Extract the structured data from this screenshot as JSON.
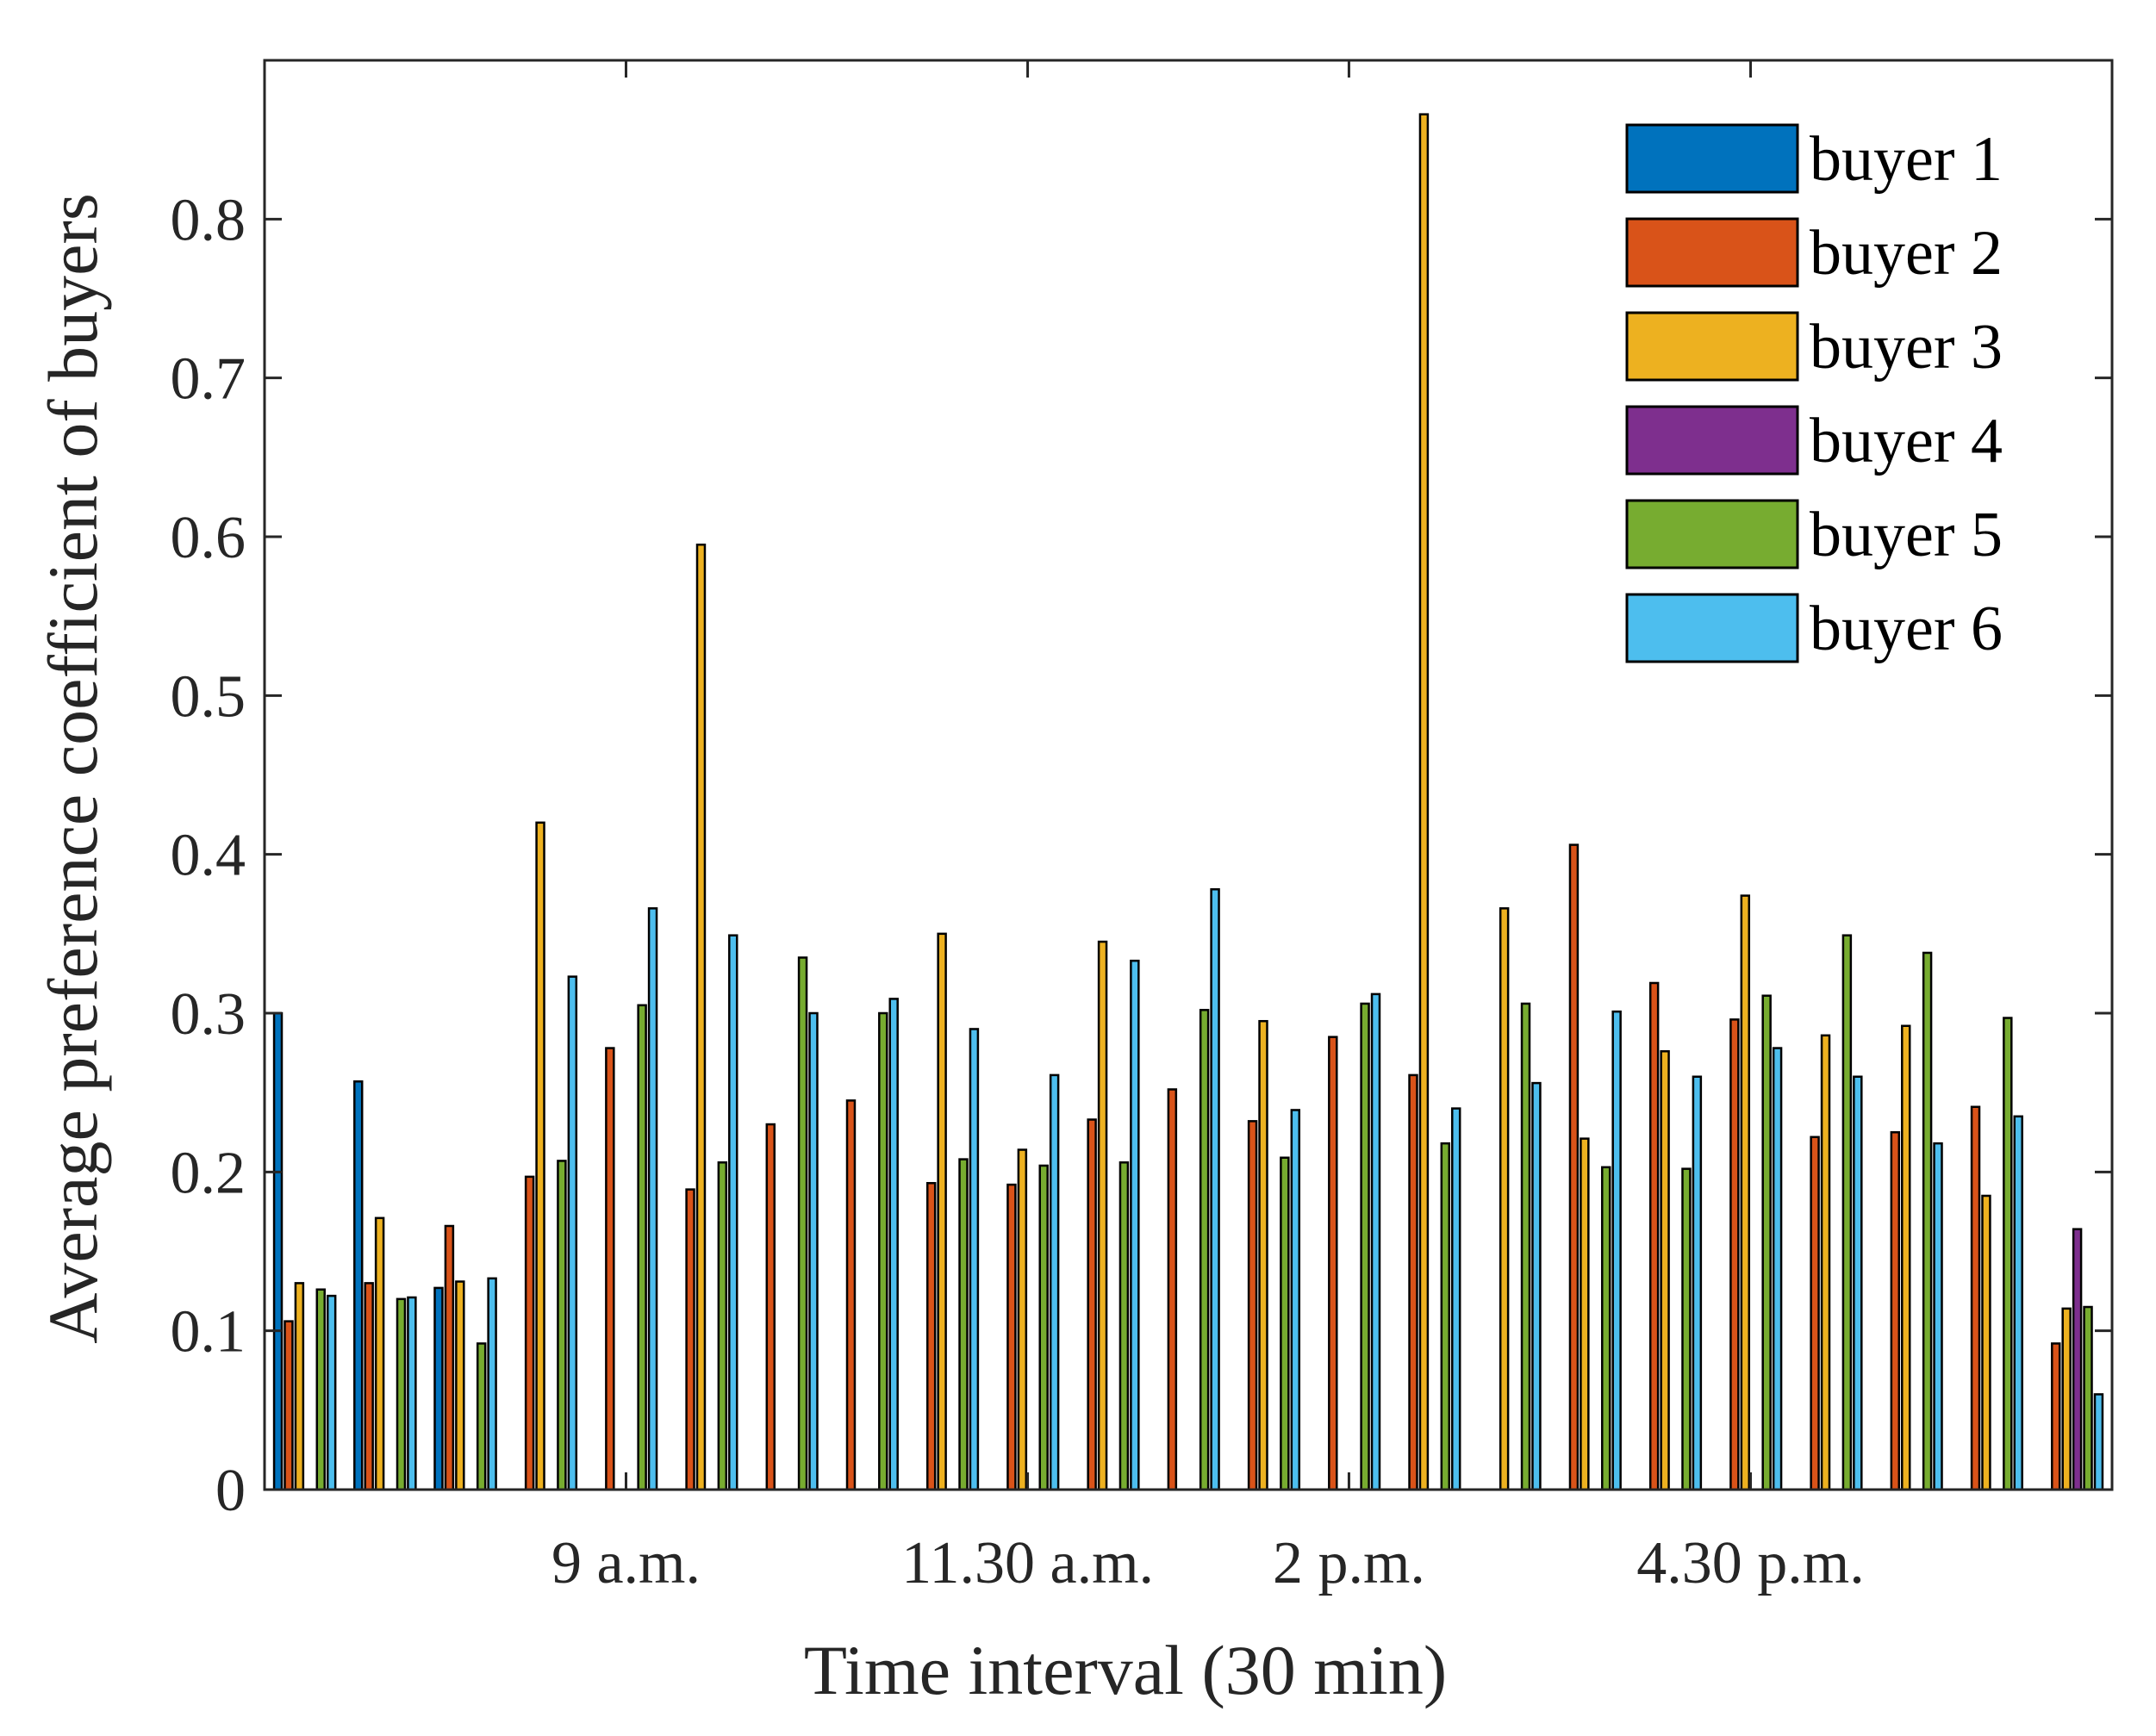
{
  "chart_data": {
    "type": "bar",
    "xlabel": "Time interval (30 min)",
    "ylabel": "Average preference coefficient of buyers",
    "ylim": [
      0,
      0.9
    ],
    "yticks": [
      0,
      0.1,
      0.2,
      0.3,
      0.4,
      0.5,
      0.6,
      0.7,
      0.8
    ],
    "ytick_labels": [
      "0",
      "0.1",
      "0.2",
      "0.3",
      "0.4",
      "0.5",
      "0.6",
      "0.7",
      "0.8"
    ],
    "xlim": [
      0.5,
      23.5
    ],
    "xticks": [
      5,
      10,
      14,
      19
    ],
    "xtick_labels": [
      "9 a.m.",
      "11.30 a.m.",
      "2 p.m.",
      "4.30 p.m."
    ],
    "grid": false,
    "legend_position": "top-right",
    "categories": [
      1,
      2,
      3,
      4,
      5,
      6,
      7,
      8,
      9,
      10,
      11,
      12,
      13,
      14,
      15,
      16,
      17,
      18,
      19,
      20,
      21,
      22,
      23
    ],
    "series": [
      {
        "name": "buyer 1",
        "color": "#0072BD",
        "values": [
          0.3,
          0.257,
          0.127,
          0,
          0,
          0,
          0,
          0,
          0,
          0,
          0,
          0,
          0,
          0,
          0,
          0,
          0,
          0,
          0,
          0,
          0,
          0,
          0
        ]
      },
      {
        "name": "buyer 2",
        "color": "#D95319",
        "values": [
          0.106,
          0.13,
          0.166,
          0.197,
          0.278,
          0.189,
          0.23,
          0.245,
          0.193,
          0.192,
          0.233,
          0.252,
          0.232,
          0.285,
          0.261,
          0,
          0.406,
          0.319,
          0.296,
          0.222,
          0.225,
          0.241,
          0.092
        ]
      },
      {
        "name": "buyer 3",
        "color": "#EDB120",
        "values": [
          0.13,
          0.171,
          0.131,
          0.42,
          0,
          0.595,
          0,
          0,
          0.35,
          0.214,
          0.345,
          0,
          0.295,
          0,
          0.866,
          0.366,
          0.221,
          0.276,
          0.374,
          0.286,
          0.292,
          0.185,
          0.114
        ]
      },
      {
        "name": "buyer 4",
        "color": "#7E2F8E",
        "values": [
          0,
          0,
          0,
          0,
          0,
          0,
          0,
          0,
          0,
          0,
          0,
          0,
          0,
          0,
          0,
          0,
          0,
          0,
          0,
          0,
          0,
          0,
          0.164
        ]
      },
      {
        "name": "buyer 5",
        "color": "#77AC30",
        "values": [
          0.126,
          0.12,
          0.092,
          0.207,
          0.305,
          0.206,
          0.335,
          0.3,
          0.208,
          0.204,
          0.206,
          0.302,
          0.209,
          0.306,
          0.218,
          0.306,
          0.203,
          0.202,
          0.311,
          0.349,
          0.338,
          0.297,
          0.115
        ]
      },
      {
        "name": "buyer 6",
        "color": "#4DBEEE",
        "values": [
          0.122,
          0.121,
          0.133,
          0.323,
          0.366,
          0.349,
          0.3,
          0.309,
          0.29,
          0.261,
          0.333,
          0.378,
          0.239,
          0.312,
          0.24,
          0.256,
          0.301,
          0.26,
          0.278,
          0.26,
          0.218,
          0.235,
          0.06
        ]
      }
    ]
  }
}
